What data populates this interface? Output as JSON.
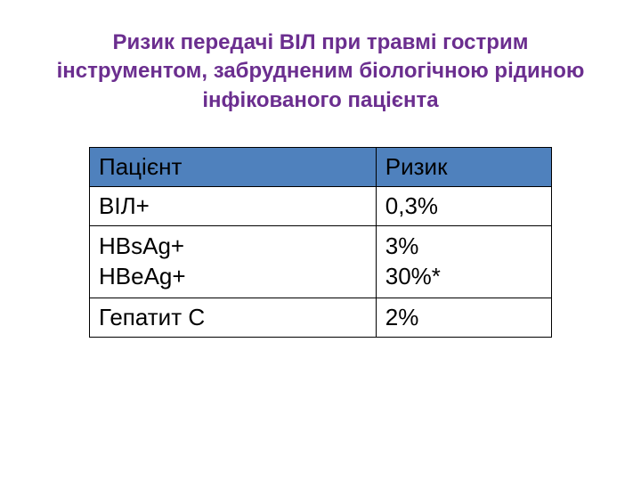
{
  "title": {
    "text": "Ризик передачі ВІЛ при травмі гострим інструментом, забрудненим біологічною рідиною інфікованого пацієнта",
    "color": "#6b2e8f",
    "fontsize": 24
  },
  "table": {
    "type": "table",
    "border_color": "#000000",
    "border_width": 1,
    "header_bg": "#4f81bd",
    "header_text_color": "#000000",
    "body_bg": "#ffffff",
    "body_text_color": "#000000",
    "header_fontsize": 26,
    "body_fontsize": 26,
    "columns": [
      {
        "label": "Пацієнт",
        "key": "patient",
        "width_pct": 62
      },
      {
        "label": "Ризик",
        "key": "risk",
        "width_pct": 38
      }
    ],
    "rows": [
      {
        "patient": "ВІЛ+",
        "risk": "0,3%"
      },
      {
        "patient": "HBsAg+\nHBeAg+",
        "risk": "3%\n30%*"
      },
      {
        "patient": "Гепатит С",
        "risk": "2%"
      }
    ]
  }
}
